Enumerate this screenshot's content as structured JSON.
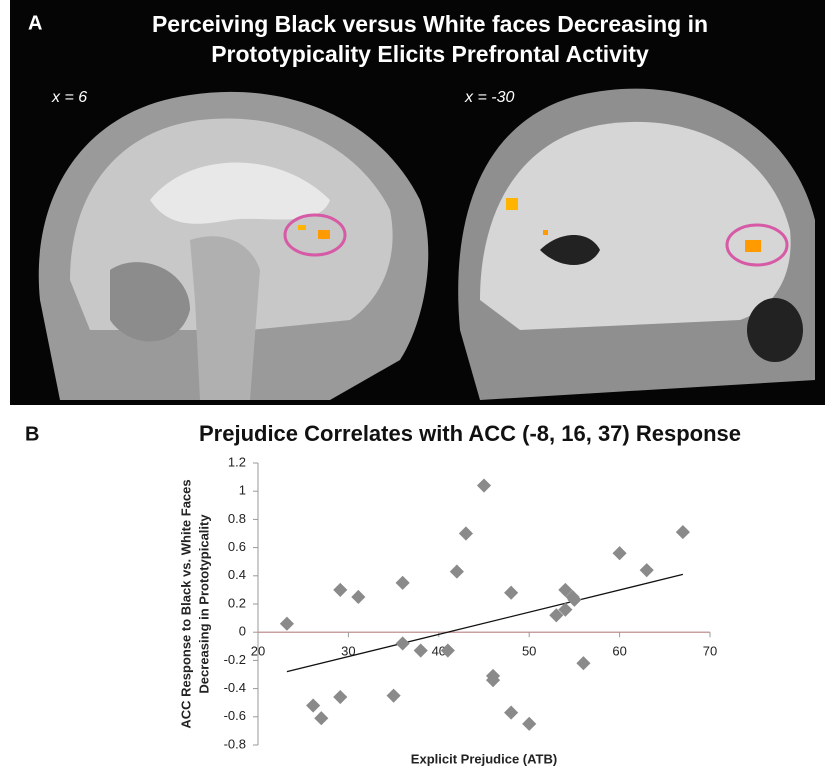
{
  "panel_a": {
    "label": "A",
    "title": [
      "Perceiving Black versus White faces Decreasing in",
      "Prototypicality Elicits Prefrontal Activity"
    ],
    "left_slice": "x = 6",
    "right_slice": "x = -30"
  },
  "panel_b_label": "B",
  "chart_data": {
    "type": "scatter",
    "title": "Prejudice Correlates with ACC (-8, 16, 37) Response",
    "x_label": "Explicit Prejudice (ATB)",
    "y_label": [
      "ACC Response to Black vs. White Faces",
      "Decreasing in Prototypicality"
    ],
    "color": "#8a8a8a",
    "line_color": "#111111",
    "x": [
      23.2,
      26.1,
      27.0,
      29.1,
      29.1,
      31.1,
      35.0,
      36.0,
      36.0,
      38.0,
      41.0,
      42.0,
      43.0,
      45.0,
      46.0,
      46.0,
      48.0,
      48.0,
      50.0,
      53.0,
      54.0,
      54.0,
      54.8,
      55.0,
      56.0,
      60.0,
      63.0,
      67.0
    ],
    "values": [
      0.06,
      -0.52,
      -0.61,
      0.3,
      -0.46,
      0.25,
      -0.45,
      0.35,
      -0.08,
      -0.13,
      -0.13,
      0.43,
      0.7,
      1.04,
      -0.31,
      -0.34,
      0.28,
      -0.57,
      -0.65,
      0.12,
      0.3,
      0.16,
      0.25,
      0.23,
      -0.22,
      0.56,
      0.44,
      0.71
    ],
    "trendline": {
      "x": [
        23.2,
        67.0
      ],
      "y": [
        -0.28,
        0.41
      ]
    },
    "xlim": [
      20,
      70
    ],
    "xticks": [
      20,
      30,
      40,
      50,
      60,
      70
    ],
    "ylim": [
      -0.8,
      1.2
    ],
    "yticks": [
      -0.8,
      -0.6,
      -0.4,
      -0.2,
      0,
      0.2,
      0.4,
      0.6,
      0.8,
      1,
      1.2
    ]
  }
}
